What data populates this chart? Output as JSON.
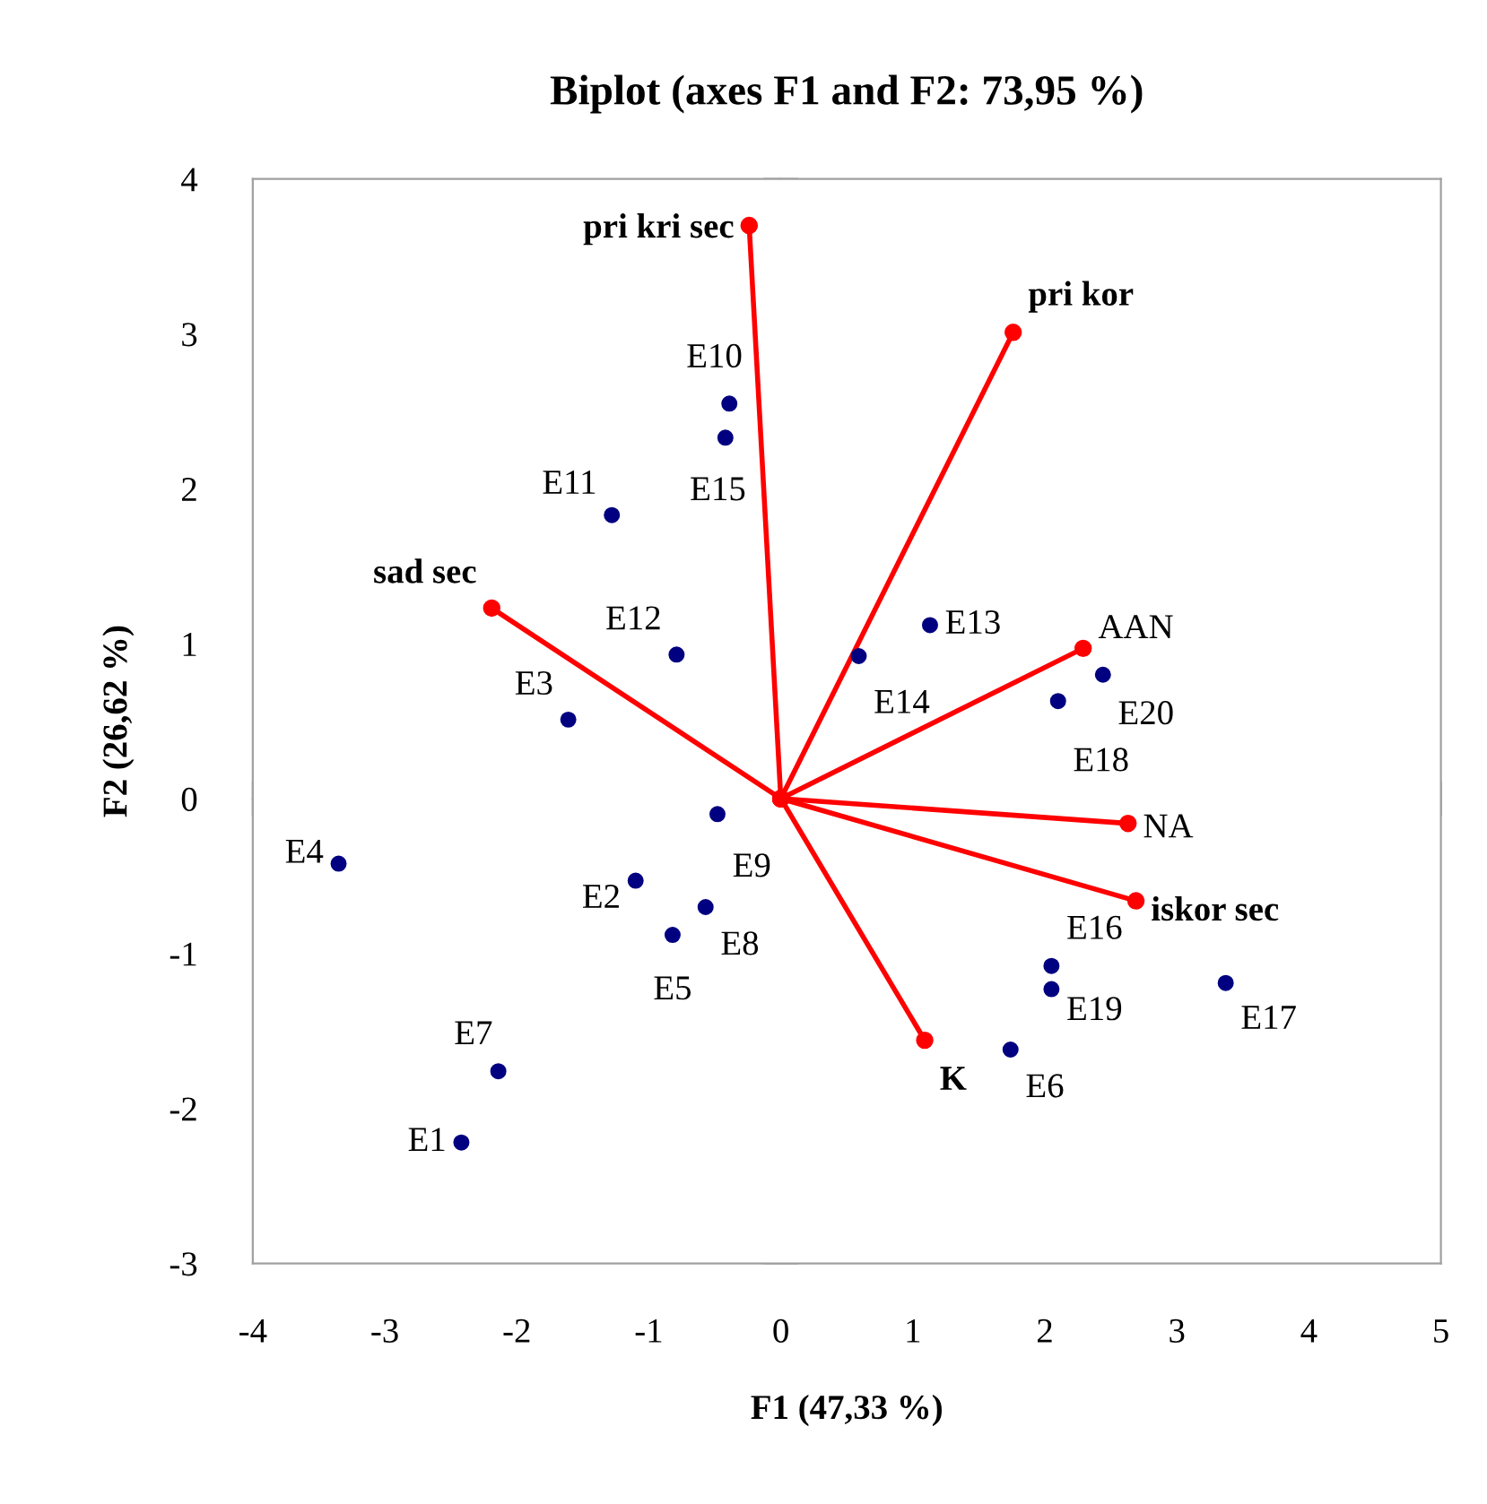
{
  "chart_data": {
    "type": "scatter",
    "title": "Biplot (axes F1 and F2: 73,95 %)",
    "xlabel": "F1 (47,33 %)",
    "ylabel": "F2 (26,62 %)",
    "xlim": [
      -4,
      5
    ],
    "ylim": [
      -3,
      4
    ],
    "xticks": [
      -4,
      -3,
      -2,
      -1,
      0,
      1,
      2,
      3,
      4,
      5
    ],
    "yticks": [
      -3,
      -2,
      -1,
      0,
      1,
      2,
      3,
      4
    ],
    "marker": "circle",
    "series": [
      {
        "color": "#000080",
        "x": [
          -2.42,
          -1.1,
          -1.61,
          -3.35,
          -0.82,
          1.74,
          -2.14,
          -0.57,
          -0.48,
          -0.39,
          -1.28,
          -0.79,
          1.13,
          0.59,
          -0.42,
          2.05,
          3.37,
          2.1,
          2.05,
          2.44
        ],
        "values": [
          -2.22,
          -0.53,
          0.51,
          -0.42,
          -0.88,
          -1.62,
          -1.76,
          -0.7,
          -0.1,
          2.55,
          1.83,
          0.93,
          1.12,
          0.92,
          2.33,
          -1.08,
          -1.19,
          0.63,
          -1.23,
          0.8
        ],
        "value_labels": [
          "E1",
          "E2",
          "E3",
          "E4",
          "E5",
          "E6",
          "E7",
          "E8",
          "E9",
          "E10",
          "E11",
          "E12",
          "E13",
          "E14",
          "E15",
          "E16",
          "E17",
          "E18",
          "E19",
          "E20"
        ]
      },
      {
        "type": "line",
        "color": "#ff0000",
        "x": [
          0,
          -0.24
        ],
        "values": [
          0,
          3.7
        ],
        "value_labels": [
          null,
          "pri kri sec"
        ]
      },
      {
        "type": "line",
        "color": "#ff0000",
        "x": [
          0,
          1.76
        ],
        "values": [
          0,
          3.01
        ],
        "value_labels": [
          null,
          "pri kor"
        ]
      },
      {
        "type": "line",
        "color": "#ff0000",
        "x": [
          0,
          -2.19
        ],
        "values": [
          0,
          1.23
        ],
        "value_labels": [
          null,
          "sad sec"
        ]
      },
      {
        "type": "line",
        "color": "#ff0000",
        "x": [
          0,
          2.29
        ],
        "values": [
          0,
          0.97
        ],
        "value_labels": [
          null,
          "AAN"
        ]
      },
      {
        "type": "line",
        "color": "#ff0000",
        "x": [
          0,
          2.63
        ],
        "values": [
          0,
          -0.16
        ],
        "value_labels": [
          null,
          "NA"
        ]
      },
      {
        "type": "line",
        "color": "#ff0000",
        "x": [
          0,
          2.69
        ],
        "values": [
          0,
          -0.66
        ],
        "value_labels": [
          null,
          "iskor sec"
        ]
      },
      {
        "type": "line",
        "color": "#ff0000",
        "x": [
          0,
          1.09
        ],
        "values": [
          0,
          -1.56
        ],
        "value_labels": [
          null,
          "K"
        ]
      }
    ]
  }
}
